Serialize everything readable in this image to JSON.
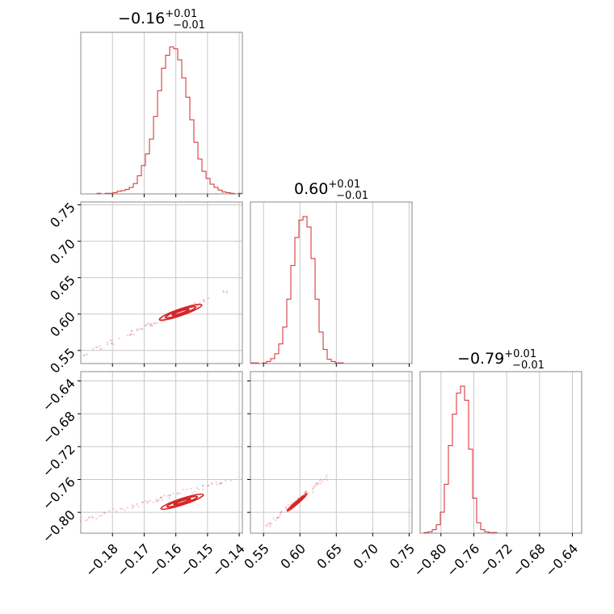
{
  "colors": {
    "series": "#d62728",
    "grid": "#c8c8c8",
    "frame": "#888888"
  },
  "chart_data": {
    "type": "corner",
    "grid": true,
    "parameters": [
      {
        "key": "p0",
        "range": [
          -0.19,
          -0.139
        ],
        "ticks": [
          -0.18,
          -0.17,
          -0.16,
          -0.15,
          -0.14
        ],
        "tick_labels": [
          "−0.18",
          "−0.17",
          "−0.16",
          "−0.15",
          "−0.14"
        ]
      },
      {
        "key": "p1",
        "range": [
          0.532,
          0.754
        ],
        "ticks": [
          0.55,
          0.6,
          0.65,
          0.7,
          0.75
        ],
        "tick_labels": [
          "0.55",
          "0.60",
          "0.65",
          "0.70",
          "0.75"
        ]
      },
      {
        "key": "p2",
        "range": [
          -0.8254,
          -0.6287
        ],
        "ticks": [
          -0.64,
          -0.68,
          -0.72,
          -0.76,
          -0.8
        ],
        "tick_labels": [
          "−0.64",
          "−0.68",
          "−0.72",
          "−0.76",
          "−0.80"
        ]
      }
    ],
    "titles": [
      {
        "value": "−0.16",
        "plus": "+0.01",
        "minus": "−0.01"
      },
      {
        "value": "0.60",
        "plus": "+0.01",
        "minus": "−0.01"
      },
      {
        "value": "−0.79",
        "plus": "+0.01",
        "minus": "−0.01"
      }
    ],
    "histograms": [
      {
        "param": 0,
        "bins": 40,
        "counts": [
          0,
          0,
          0,
          0,
          1,
          0,
          1,
          1,
          2,
          4,
          5,
          7,
          10,
          16,
          28,
          44,
          62,
          85,
          120,
          160,
          195,
          215,
          228,
          225,
          208,
          180,
          150,
          115,
          80,
          54,
          35,
          24,
          15,
          10,
          6,
          3,
          2,
          1,
          0,
          1
        ]
      },
      {
        "param": 1,
        "bins": 40,
        "counts": [
          1,
          1,
          0,
          1,
          3,
          7,
          14,
          28,
          52,
          92,
          140,
          180,
          205,
          210,
          195,
          150,
          92,
          45,
          20,
          6,
          3,
          1,
          1,
          0,
          0,
          0,
          0,
          0,
          0,
          0,
          0,
          0,
          0,
          0,
          0,
          0,
          0,
          0,
          0,
          0
        ]
      },
      {
        "param": 2,
        "bins": 40,
        "counts": [
          0,
          1,
          2,
          5,
          12,
          30,
          70,
          125,
          170,
          200,
          210,
          190,
          120,
          50,
          15,
          5,
          2,
          1,
          1,
          0,
          0,
          0,
          0,
          0,
          0,
          0,
          0,
          0,
          0,
          0,
          0,
          0,
          0,
          0,
          0,
          0,
          0,
          0,
          0,
          0
        ]
      }
    ],
    "pairs": [
      {
        "x": 0,
        "y": 1,
        "contours": [
          {
            "center": [
              -0.1585,
              0.6025
            ],
            "sx": 0.0026,
            "sy": 0.0042,
            "rho": 0.9
          },
          {
            "center": [
              -0.1585,
              0.6025
            ],
            "sx": 0.0048,
            "sy": 0.0078,
            "rho": 0.9
          },
          {
            "center": [
              -0.1585,
              0.6025
            ],
            "sx": 0.0067,
            "sy": 0.0109,
            "rho": 0.9
          }
        ],
        "scatter_from": [
          -0.19,
          0.542
        ],
        "scatter_to": [
          -0.142,
          0.636
        ]
      },
      {
        "x": 0,
        "y": 2,
        "contours": [
          {
            "center": [
              -0.158,
              -0.787
            ],
            "sx": 0.0026,
            "sy": 0.0035,
            "rho": 0.9
          },
          {
            "center": [
              -0.158,
              -0.787
            ],
            "sx": 0.0048,
            "sy": 0.0065,
            "rho": 0.9
          },
          {
            "center": [
              -0.158,
              -0.787
            ],
            "sx": 0.0067,
            "sy": 0.0092,
            "rho": 0.9
          }
        ],
        "scatter_from": [
          -0.19,
          -0.81
        ],
        "scatter_to": [
          -0.143,
          -0.76
        ]
      },
      {
        "x": 1,
        "y": 2,
        "contours": [
          {
            "center": [
              0.596,
              -0.788
            ],
            "sx": 0.0055,
            "sy": 0.004,
            "rho": 0.98
          },
          {
            "center": [
              0.596,
              -0.788
            ],
            "sx": 0.0095,
            "sy": 0.0075,
            "rho": 0.98
          },
          {
            "center": [
              0.596,
              -0.788
            ],
            "sx": 0.0135,
            "sy": 0.0105,
            "rho": 0.98
          }
        ],
        "scatter_from": [
          0.544,
          -0.824
        ],
        "scatter_to": [
          0.644,
          -0.752
        ]
      }
    ]
  }
}
